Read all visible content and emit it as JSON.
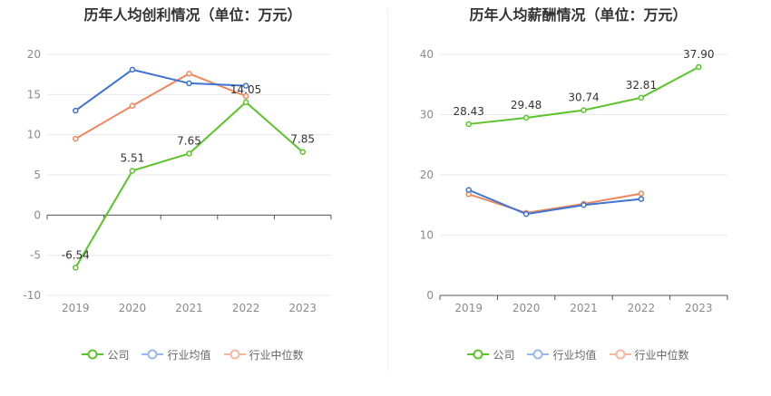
{
  "colors": {
    "company": "#5cc42b",
    "industry_avg": "#3d74d6",
    "industry_median": "#f0875f"
  },
  "legend": {
    "company": "公司",
    "industry_avg": "行业均值",
    "industry_median": "行业中位数"
  },
  "chart_data": [
    {
      "type": "line",
      "title": "历年人均创利情况（单位：万元）",
      "categories": [
        "2019",
        "2020",
        "2021",
        "2022",
        "2023"
      ],
      "ylim": [
        -10,
        20
      ],
      "yticks": [
        -10,
        -5,
        0,
        5,
        10,
        15,
        20
      ],
      "grid": true,
      "legend_position": "bottom",
      "series": [
        {
          "name": "公司",
          "values": [
            -6.54,
            5.51,
            7.65,
            14.05,
            7.85
          ],
          "labels": [
            "-6.54",
            "5.51",
            "7.65",
            "14.05",
            "7.85"
          ]
        },
        {
          "name": "行业均值",
          "values": [
            13.0,
            18.1,
            16.4,
            16.1,
            null
          ]
        },
        {
          "name": "行业中位数",
          "values": [
            9.5,
            13.6,
            17.6,
            14.8,
            null
          ]
        }
      ]
    },
    {
      "type": "line",
      "title": "历年人均薪酬情况（单位：万元）",
      "categories": [
        "2019",
        "2020",
        "2021",
        "2022",
        "2023"
      ],
      "ylim": [
        0,
        40
      ],
      "yticks": [
        0,
        10,
        20,
        30,
        40
      ],
      "grid": true,
      "legend_position": "bottom",
      "series": [
        {
          "name": "公司",
          "values": [
            28.43,
            29.48,
            30.74,
            32.81,
            37.9
          ],
          "labels": [
            "28.43",
            "29.48",
            "30.74",
            "32.81",
            "37.90"
          ]
        },
        {
          "name": "行业均值",
          "values": [
            17.5,
            13.5,
            15.0,
            16.0,
            null
          ]
        },
        {
          "name": "行业中位数",
          "values": [
            16.8,
            13.7,
            15.2,
            16.9,
            null
          ]
        }
      ]
    }
  ]
}
